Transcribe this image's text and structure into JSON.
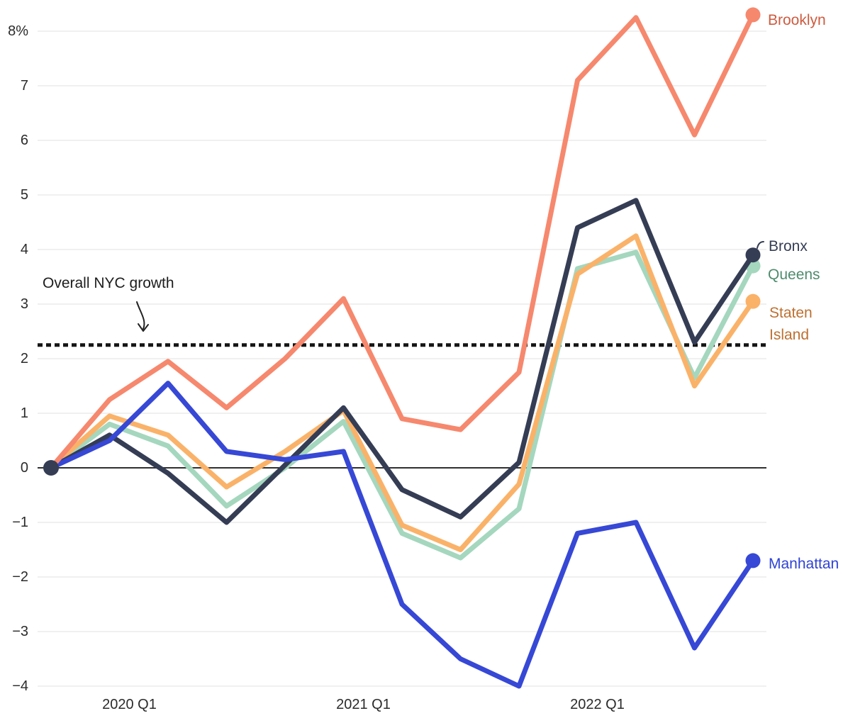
{
  "chart_data": {
    "type": "line",
    "title": "",
    "x_unit": "quarter",
    "quarters": [
      "2019 Q4",
      "2020 Q1",
      "2020 Q2",
      "2020 Q3",
      "2020 Q4",
      "2021 Q1",
      "2021 Q2",
      "2021 Q3",
      "2021 Q4",
      "2022 Q1",
      "2022 Q2",
      "2022 Q3",
      "2022 Q4"
    ],
    "xticks": [
      {
        "index": 1,
        "label": "2020 Q1"
      },
      {
        "index": 5,
        "label": "2021 Q1"
      },
      {
        "index": 9,
        "label": "2022 Q1"
      }
    ],
    "yticks": [
      {
        "value": 8,
        "label": "8%"
      },
      {
        "value": 7,
        "label": "7"
      },
      {
        "value": 6,
        "label": "6"
      },
      {
        "value": 5,
        "label": "5"
      },
      {
        "value": 4,
        "label": "4"
      },
      {
        "value": 3,
        "label": "3"
      },
      {
        "value": 2,
        "label": "2"
      },
      {
        "value": 1,
        "label": "1"
      },
      {
        "value": 0,
        "label": "0"
      },
      {
        "value": -1,
        "label": "−1"
      },
      {
        "value": -2,
        "label": "−2"
      },
      {
        "value": -3,
        "label": "−3"
      },
      {
        "value": -4,
        "label": "−4"
      }
    ],
    "ylim": [
      -4,
      8
    ],
    "grid": "horizontal",
    "legend_position": "end-of-line labels, right side",
    "reference_line": {
      "label": "Overall NYC growth",
      "value": 2.25,
      "style": "dotted",
      "color": "#151515"
    },
    "series": [
      {
        "name": "Queens",
        "color": "#a4d7be",
        "label_color": "#4e8c6e",
        "values": [
          0,
          0.8,
          0.4,
          -0.7,
          0.0,
          0.85,
          -1.2,
          -1.65,
          -0.75,
          3.65,
          3.95,
          1.65,
          3.7
        ]
      },
      {
        "name": "Staten Island",
        "color": "#fab269",
        "label_color": "#bd7030",
        "values": [
          0,
          0.95,
          0.6,
          -0.35,
          0.3,
          1.05,
          -1.05,
          -1.5,
          -0.3,
          3.55,
          4.25,
          1.5,
          3.05
        ]
      },
      {
        "name": "Bronx",
        "color": "#353d55",
        "label_color": "#353d55",
        "values": [
          0,
          0.6,
          -0.1,
          -1.0,
          0.05,
          1.1,
          -0.4,
          -0.9,
          0.1,
          4.4,
          4.9,
          2.3,
          3.9
        ]
      },
      {
        "name": "Manhattan",
        "color": "#3648d5",
        "label_color": "#2f42d5",
        "values": [
          0,
          0.5,
          1.55,
          0.3,
          0.15,
          0.3,
          -2.5,
          -3.5,
          -4.0,
          -1.2,
          -1.0,
          -3.3,
          -1.7
        ]
      },
      {
        "name": "Brooklyn",
        "color": "#f6886e",
        "label_color": "#ce5b3f",
        "values": [
          0,
          1.25,
          1.95,
          1.1,
          2.0,
          3.1,
          0.9,
          0.7,
          1.75,
          7.1,
          8.25,
          6.1,
          8.3
        ]
      }
    ],
    "start_dot": {
      "value": 0,
      "color": "#353d55"
    },
    "grid_color": "#ececec",
    "zero_line_color": "#303030"
  }
}
